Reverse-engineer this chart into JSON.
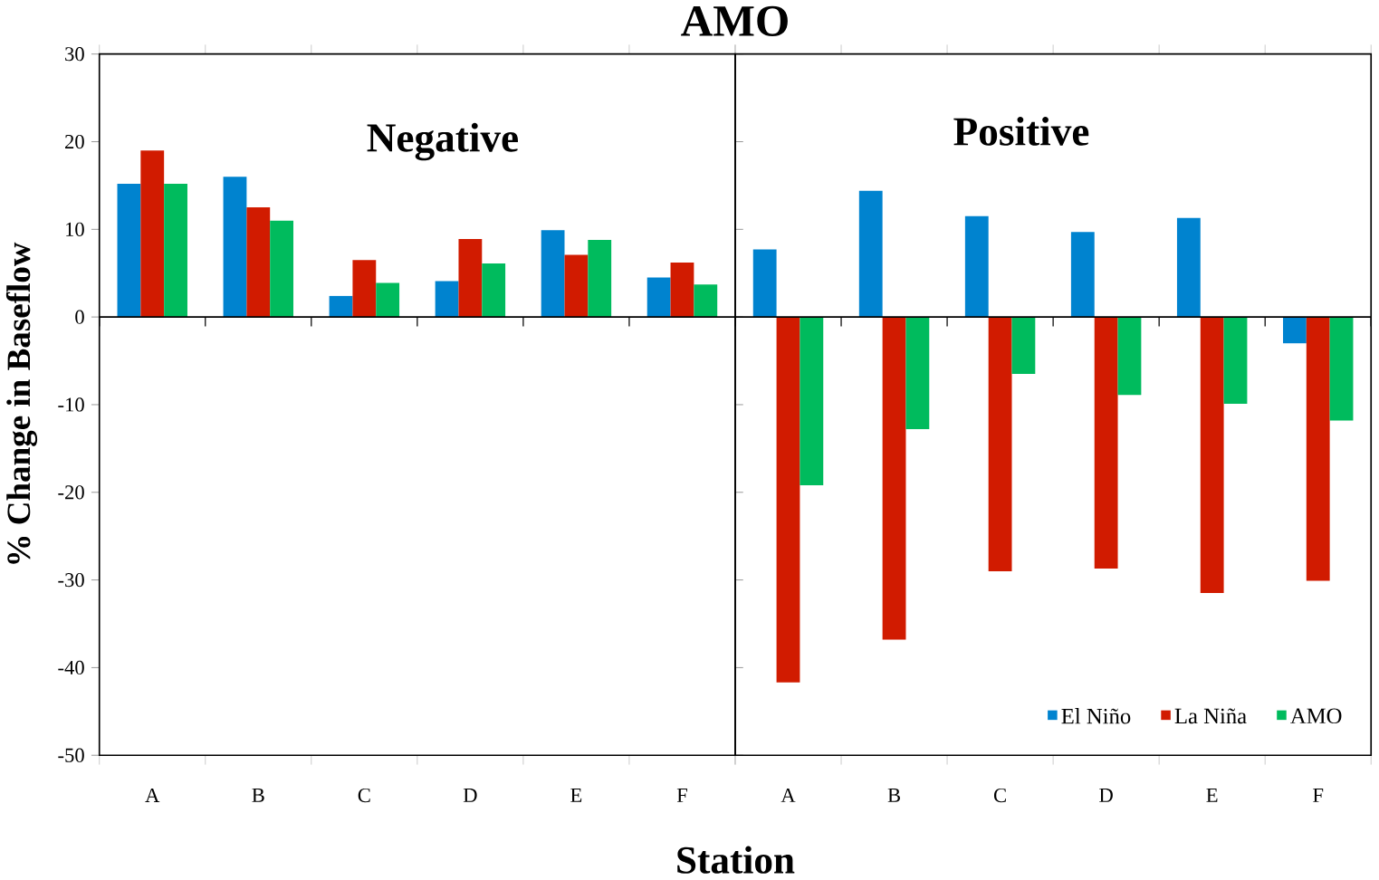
{
  "chart_data": [
    {
      "type": "bar",
      "title": "AMO",
      "xlabel": "Station",
      "ylabel": "% Change in Baseflow",
      "annotations": [
        "Negative"
      ],
      "categories": [
        "A",
        "B",
        "C",
        "D",
        "E",
        "F"
      ],
      "series": [
        {
          "color": "#0083cf",
          "values": [
            15.2,
            16.0,
            2.4,
            4.1,
            9.9,
            4.5
          ]
        },
        {
          "color": "#d11b00",
          "values": [
            19.0,
            12.5,
            6.5,
            8.9,
            7.1,
            6.2
          ]
        },
        {
          "color": "#00bb5d",
          "values": [
            15.2,
            11.0,
            3.9,
            6.1,
            8.8,
            3.7
          ]
        }
      ],
      "ylim": [
        -50,
        30
      ],
      "yticks": [
        -50,
        -40,
        -30,
        -20,
        -10,
        0,
        10,
        20,
        30
      ]
    },
    {
      "type": "bar",
      "annotations": [
        "Positive"
      ],
      "categories": [
        "A",
        "B",
        "C",
        "D",
        "E",
        "F"
      ],
      "series": [
        {
          "name": "El Niño",
          "color": "#0083cf",
          "values": [
            7.7,
            14.4,
            11.5,
            9.7,
            11.3,
            -3.0
          ]
        },
        {
          "name": "La Niña",
          "color": "#d11b00",
          "values": [
            -41.7,
            -36.8,
            -29.0,
            -28.7,
            -31.5,
            -30.1
          ]
        },
        {
          "name": "AMO",
          "color": "#00bb5d",
          "values": [
            -19.2,
            -12.8,
            -6.5,
            -8.9,
            -9.9,
            -11.8
          ]
        }
      ],
      "ylim": [
        -50,
        30
      ],
      "yticks": [
        -50,
        -40,
        -30,
        -20,
        -10,
        0,
        10,
        20,
        30
      ],
      "tick_labels": "x",
      "legend": "bottom right"
    }
  ]
}
